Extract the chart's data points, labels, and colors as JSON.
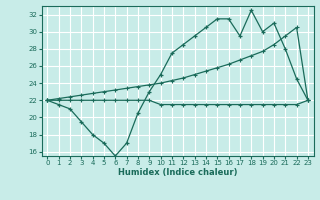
{
  "xlabel": "Humidex (Indice chaleur)",
  "ylabel": "",
  "bg_color": "#c8ece8",
  "grid_color": "#ffffff",
  "line_color": "#1a6b5a",
  "x": [
    0,
    1,
    2,
    3,
    4,
    5,
    6,
    7,
    8,
    9,
    10,
    11,
    12,
    13,
    14,
    15,
    16,
    17,
    18,
    19,
    20,
    21,
    22,
    23
  ],
  "line1": [
    22,
    21.5,
    21,
    19.5,
    18,
    17,
    15.5,
    17,
    20.5,
    23,
    25,
    27.5,
    28.5,
    29.5,
    30.5,
    31.5,
    31.5,
    29.5,
    32.5,
    30,
    31,
    28,
    24.5,
    22
  ],
  "line2": [
    22,
    22,
    22,
    22,
    22,
    22,
    22,
    22,
    22,
    22,
    21.5,
    21.5,
    21.5,
    21.5,
    21.5,
    21.5,
    21.5,
    21.5,
    21.5,
    21.5,
    21.5,
    21.5,
    21.5,
    22
  ],
  "line3": [
    22,
    22.2,
    22.4,
    22.6,
    22.8,
    23.0,
    23.2,
    23.4,
    23.6,
    23.8,
    24.0,
    24.3,
    24.6,
    25.0,
    25.4,
    25.8,
    26.2,
    26.7,
    27.2,
    27.7,
    28.5,
    29.5,
    30.5,
    22
  ],
  "ylim": [
    15.5,
    33
  ],
  "xlim": [
    -0.5,
    23.5
  ],
  "yticks": [
    16,
    18,
    20,
    22,
    24,
    26,
    28,
    30,
    32
  ],
  "xticks": [
    0,
    1,
    2,
    3,
    4,
    5,
    6,
    7,
    8,
    9,
    10,
    11,
    12,
    13,
    14,
    15,
    16,
    17,
    18,
    19,
    20,
    21,
    22,
    23
  ]
}
